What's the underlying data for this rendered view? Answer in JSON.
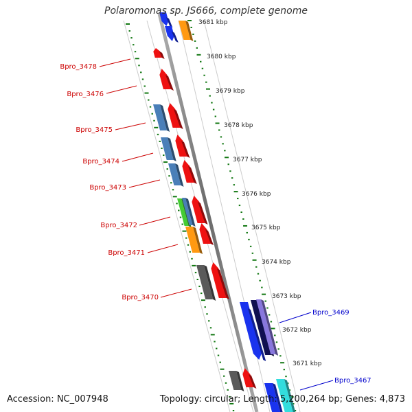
{
  "title": "Polaromonas sp. JS666, complete genome",
  "footer": {
    "accession": "Accession: NC_007948",
    "summary": "Topology: circular; Length: 5,200,264 bp; Genes: 4,873"
  },
  "scale_labels": [
    "3681 kbp",
    "3680 kbp",
    "3679 kbp",
    "3678 kbp",
    "3677 kbp",
    "3676 kbp",
    "3675 kbp",
    "3674 kbp",
    "3673 kbp",
    "3672 kbp",
    "3671 kbp"
  ],
  "gene_labels_reverse": [
    "Bpro_3478",
    "Bpro_3476",
    "Bpro_3475",
    "Bpro_3474",
    "Bpro_3473",
    "Bpro_3472",
    "Bpro_3471",
    "Bpro_3470"
  ],
  "gene_labels_forward": [
    "Bpro_3469",
    "Bpro_3467"
  ],
  "colors": {
    "reverse_label": "#cc0000",
    "forward_label": "#0000cc",
    "gene_red": "#ee1111",
    "gene_blue": "#1a33ee",
    "gene_steel": "#4a7fb8",
    "gene_orange": "#ff9911",
    "gene_green": "#44cc33",
    "gene_gray": "#5a5a5a",
    "gene_navy": "#101050",
    "gene_purple": "#8877dd",
    "gene_cyan": "#33dddd",
    "tick_green": "#117711",
    "backbone": "#888888"
  }
}
